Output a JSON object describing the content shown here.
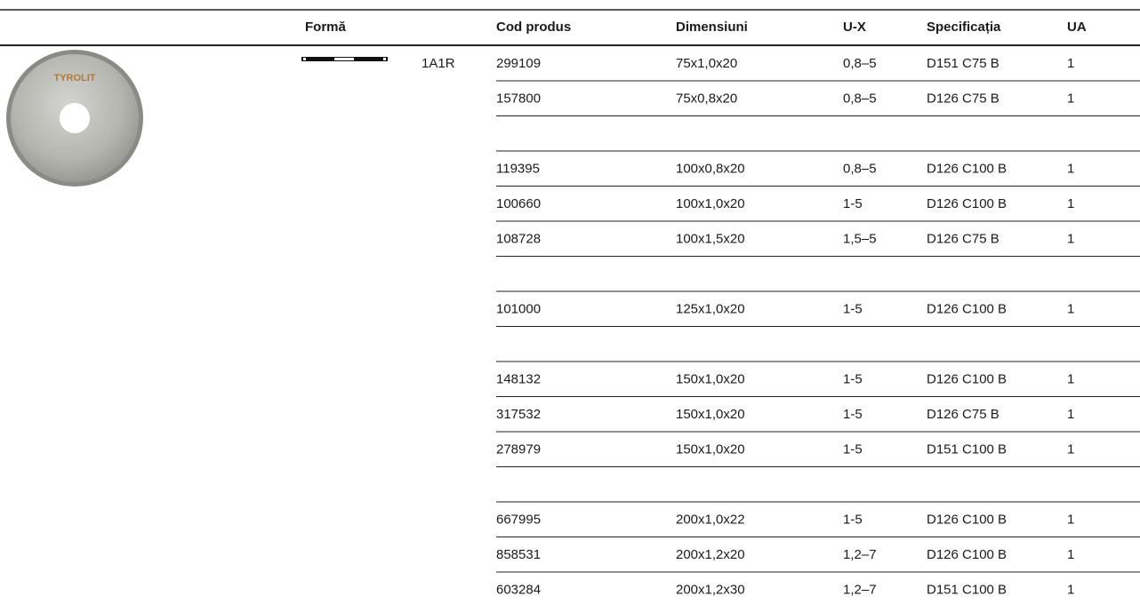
{
  "header": {
    "columns": [
      "Formă",
      "Cod produs",
      "Dimensiuni",
      "U-X",
      "Specificația",
      "UA"
    ]
  },
  "product": {
    "image_label": "TYROLIT",
    "shape": "1A1R"
  },
  "groups": [
    [
      [
        "299109",
        "75x1,0x20",
        "0,8–5",
        "D151 C75 B",
        "1"
      ],
      [
        "157800",
        "75x0,8x20",
        "0,8–5",
        "D126 C75 B",
        "1"
      ]
    ],
    [
      [
        "119395",
        "100x0,8x20",
        "0,8–5",
        "D126 C100 B",
        "1"
      ],
      [
        "100660",
        "100x1,0x20",
        "1-5",
        "D126 C100 B",
        "1"
      ],
      [
        "108728",
        "100x1,5x20",
        "1,5–5",
        "D126 C75 B",
        "1"
      ]
    ],
    [
      [
        "101000",
        "125x1,0x20",
        "1-5",
        "D126 C100 B",
        "1"
      ]
    ],
    [
      [
        "148132",
        "150x1,0x20",
        "1-5",
        "D126 C100 B",
        "1"
      ],
      [
        "317532",
        "150x1,0x20",
        "1-5",
        "D126 C75 B",
        "1"
      ],
      [
        "278979",
        "150x1,0x20",
        "1-5",
        "D151 C100 B",
        "1"
      ]
    ],
    [
      [
        "667995",
        "200x1,0x22",
        "1-5",
        "D126 C100 B",
        "1"
      ],
      [
        "858531",
        "200x1,2x20",
        "1,2–7",
        "D126 C100 B",
        "1"
      ],
      [
        "603284",
        "200x1,2x30",
        "1,2–7",
        "D151 C100 B",
        "1"
      ]
    ]
  ]
}
